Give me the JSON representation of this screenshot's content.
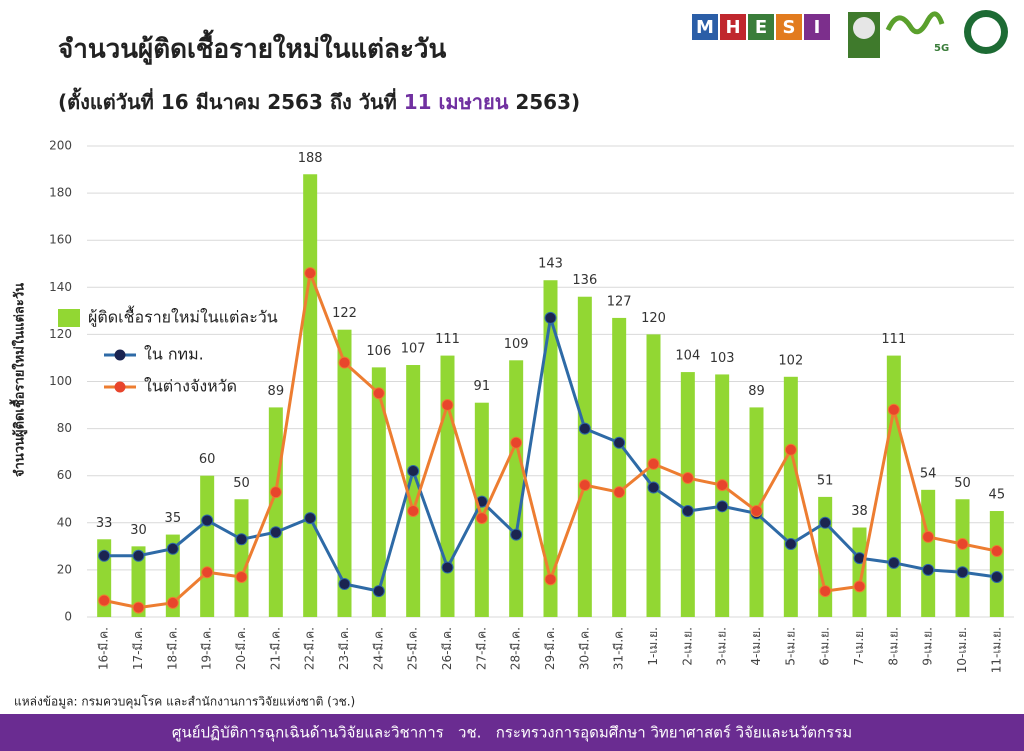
{
  "chart_data": {
    "type": "bar",
    "title": "จำนวนผู้ติดเชื้อรายใหม่ในแต่ละวัน",
    "subtitle": [
      "(ตั้งแต่วันที่ 16 มีนาคม 2563 ถึง วันที่ ",
      "11 เมษายน",
      " 2563)"
    ],
    "y_label": "จำนวนผู้ติดเชื้อรายใหม่ในแต่ละวัน",
    "source": "แหล่งข้อมูล: กรมควบคุมโรค และสำนักงานการวิจัยแห่งชาติ (วช.)",
    "footer": "ศูนย์ปฏิบัติการฉุกเฉินด้านวิจัยและวิชาการ   วช.   กระทรวงการอุดมศึกษา วิทยาศาสตร์ วิจัยและนวัตกรรม",
    "logos": [
      "M",
      "H",
      "E",
      "S",
      "I",
      "5G"
    ],
    "categories": [
      "16-มี.ค.",
      "17-มี.ค.",
      "18-มี.ค.",
      "19-มี.ค.",
      "20-มี.ค.",
      "21-มี.ค.",
      "22-มี.ค.",
      "23-มี.ค.",
      "24-มี.ค.",
      "25-มี.ค.",
      "26-มี.ค.",
      "27-มี.ค.",
      "28-มี.ค.",
      "29-มี.ค.",
      "30-มี.ค.",
      "31-มี.ค.",
      "1-เม.ย.",
      "2-เม.ย.",
      "3-เม.ย.",
      "4-เม.ย.",
      "5-เม.ย.",
      "6-เม.ย.",
      "7-เม.ย.",
      "8-เม.ย.",
      "9-เม.ย.",
      "10-เม.ย.",
      "11-เม.ย."
    ],
    "series": [
      {
        "name": "ผู้ติดเชื้อรายใหม่ในแต่ละวัน",
        "type": "bar",
        "color": "#92d733",
        "values": [
          33,
          30,
          35,
          60,
          50,
          89,
          188,
          122,
          106,
          107,
          111,
          91,
          109,
          143,
          136,
          127,
          120,
          104,
          103,
          89,
          102,
          51,
          38,
          111,
          54,
          50,
          45
        ]
      },
      {
        "name": "ใน กทม.",
        "type": "line",
        "color": "#2e6aa6",
        "values": [
          26,
          26,
          29,
          41,
          33,
          36,
          42,
          14,
          11,
          62,
          21,
          49,
          35,
          127,
          80,
          74,
          55,
          45,
          47,
          44,
          31,
          40,
          25,
          23,
          20,
          19,
          17
        ]
      },
      {
        "name": "ในต่างจังหวัด",
        "type": "line",
        "color": "#ed7d31",
        "values": [
          7,
          4,
          6,
          19,
          17,
          53,
          146,
          108,
          95,
          45,
          90,
          42,
          74,
          16,
          56,
          53,
          65,
          59,
          56,
          45,
          71,
          11,
          13,
          88,
          34,
          31,
          28
        ]
      }
    ],
    "ylim": [
      0,
      200
    ],
    "yticks": [
      0,
      20,
      40,
      60,
      80,
      100,
      120,
      140,
      160,
      180,
      200
    ],
    "grid": true
  }
}
